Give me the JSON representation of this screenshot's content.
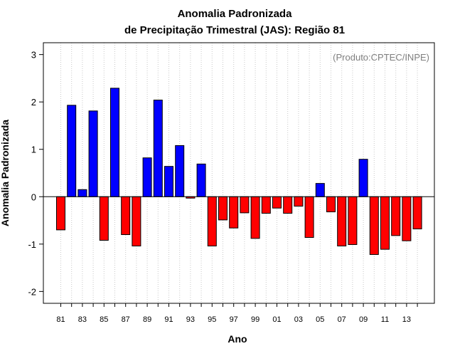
{
  "chart_data": {
    "type": "bar",
    "title": [
      "Anomalia Padronizada",
      "de Precipitação Trimestral (JAS): Região 81"
    ],
    "xlabel": "Ano",
    "ylabel": "Anomalia Padronizada",
    "credit": "(Produto:CPTEC/INPE)",
    "ylim": [
      -2.25,
      3.25
    ],
    "yticks": [
      -2,
      -1,
      0,
      1,
      2,
      3
    ],
    "grid": "vertical-dotted",
    "legend": "none",
    "colors": {
      "positive": "#0000ff",
      "negative": "#ff0000"
    },
    "categories": [
      "81",
      "82",
      "83",
      "84",
      "85",
      "86",
      "87",
      "88",
      "89",
      "90",
      "91",
      "92",
      "93",
      "94",
      "95",
      "96",
      "97",
      "98",
      "99",
      "00",
      "01",
      "02",
      "03",
      "04",
      "05",
      "06",
      "07",
      "08",
      "09",
      "10",
      "11",
      "12",
      "13",
      "14"
    ],
    "tick_labels": [
      "81",
      "83",
      "85",
      "87",
      "89",
      "91",
      "93",
      "95",
      "97",
      "99",
      "01",
      "03",
      "05",
      "07",
      "09",
      "11",
      "13"
    ],
    "values": [
      -0.7,
      1.93,
      0.15,
      1.81,
      -0.92,
      2.29,
      -0.8,
      -1.04,
      0.82,
      2.04,
      0.64,
      1.08,
      -0.03,
      0.69,
      -1.04,
      -0.49,
      -0.66,
      -0.34,
      -0.88,
      -0.35,
      -0.24,
      -0.35,
      -0.2,
      -0.86,
      0.28,
      -0.32,
      -1.04,
      -1.01,
      0.79,
      -1.22,
      -1.11,
      -0.82,
      -0.93,
      -0.68
    ]
  }
}
